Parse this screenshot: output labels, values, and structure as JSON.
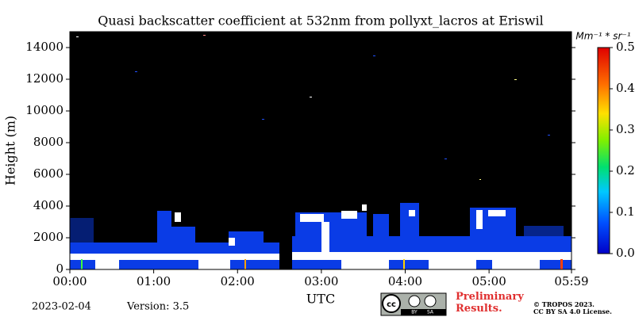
{
  "chart_data": {
    "type": "heatmap",
    "title": "Quasi backscatter coefficient at 532nm from pollyxt_lacros at Eriswil",
    "y_label": "Height (m)",
    "x_label": "UTC",
    "xlim": [
      0,
      359
    ],
    "xticks": [
      {
        "value": 0,
        "label": "00:00"
      },
      {
        "value": 60,
        "label": "01:00"
      },
      {
        "value": 120,
        "label": "02:00"
      },
      {
        "value": 180,
        "label": "03:00"
      },
      {
        "value": 240,
        "label": "04:00"
      },
      {
        "value": 300,
        "label": "05:00"
      },
      {
        "value": 359,
        "label": "05:59"
      }
    ],
    "ylim": [
      0,
      15000
    ],
    "yticks": [
      0,
      2000,
      4000,
      6000,
      8000,
      10000,
      12000,
      14000
    ],
    "colorbar": {
      "label": "Mm⁻¹ * sr⁻¹",
      "lim": [
        0,
        0.5
      ],
      "ticks": [
        {
          "value": 0,
          "label": "0.0"
        },
        {
          "value": 0.1,
          "label": "0.1"
        },
        {
          "value": 0.2,
          "label": "0.2"
        },
        {
          "value": 0.3,
          "label": "0.3"
        },
        {
          "value": 0.4,
          "label": "0.4"
        },
        {
          "value": 0.5,
          "label": "0.5"
        }
      ]
    }
  },
  "footer": {
    "date": "2023-02-04",
    "version": "Version: 3.5",
    "logo": {
      "main": "cc",
      "by": "BY",
      "sa": "SA"
    },
    "preliminary": "Preliminary Results.",
    "copyright": "© TROPOS 2023.",
    "license": "CC BY SA 4.0 License."
  }
}
